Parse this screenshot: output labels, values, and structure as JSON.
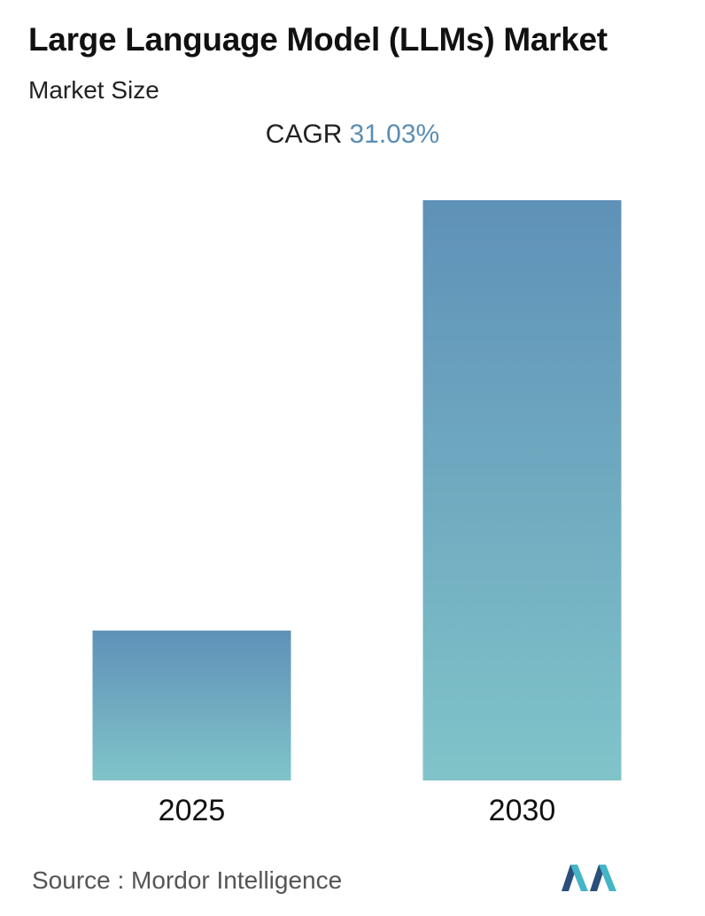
{
  "header": {
    "title": "Large Language Model (LLMs) Market",
    "subtitle": "Market Size"
  },
  "cagr": {
    "label": "CAGR",
    "value": "31.03%"
  },
  "colors": {
    "bar_top": "#5f91b8",
    "bar_bottom": "#80c4c9",
    "cagr_value": "#5b8db5"
  },
  "chart_data": {
    "type": "bar",
    "categories": [
      "2025",
      "2030"
    ],
    "values": [
      1,
      3.87
    ],
    "title": "Large Language Model (LLMs) Market",
    "xlabel": "",
    "ylabel": "",
    "grid": false,
    "axis_values_shown": false
  },
  "footer": {
    "source": "Source :  Mordor Intelligence",
    "logo_icon": "mordor-intelligence-logo"
  }
}
